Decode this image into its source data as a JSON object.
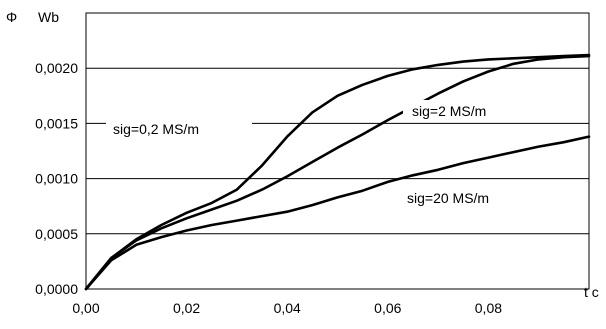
{
  "chart_data": {
    "type": "line",
    "ylabel_symbol": "Φ",
    "ylabel_unit": "Wb",
    "xlabel": "t c",
    "xlim": [
      0,
      0.1
    ],
    "ylim": [
      0,
      0.0025
    ],
    "xticks": [
      "0,00",
      "0,02",
      "0,04",
      "0,06",
      "0,08"
    ],
    "yticks": [
      "0,0000",
      "0,0005",
      "0,0010",
      "0,0015",
      "0,0020"
    ],
    "grid": "horizontal",
    "series": [
      {
        "name": "sig=0,2 MS/m",
        "x": [
          0,
          0.005,
          0.01,
          0.015,
          0.02,
          0.025,
          0.03,
          0.035,
          0.04,
          0.045,
          0.05,
          0.055,
          0.06,
          0.065,
          0.07,
          0.075,
          0.08,
          0.085,
          0.09,
          0.095,
          0.1
        ],
        "y": [
          0,
          0.00028,
          0.00045,
          0.00058,
          0.00069,
          0.00078,
          0.0009,
          0.00112,
          0.00138,
          0.0016,
          0.00175,
          0.00185,
          0.00193,
          0.00199,
          0.00203,
          0.00206,
          0.00208,
          0.00209,
          0.0021,
          0.00211,
          0.00212
        ]
      },
      {
        "name": "sig=2 MS/m",
        "x": [
          0,
          0.005,
          0.01,
          0.015,
          0.02,
          0.025,
          0.03,
          0.035,
          0.04,
          0.045,
          0.05,
          0.055,
          0.06,
          0.065,
          0.07,
          0.075,
          0.08,
          0.085,
          0.09,
          0.095,
          0.1
        ],
        "y": [
          0,
          0.00028,
          0.00044,
          0.00055,
          0.00064,
          0.00072,
          0.0008,
          0.0009,
          0.00102,
          0.00115,
          0.00128,
          0.0014,
          0.00153,
          0.00165,
          0.00177,
          0.00188,
          0.00197,
          0.00204,
          0.00208,
          0.0021,
          0.00211
        ]
      },
      {
        "name": "sig=20 MS/m",
        "x": [
          0,
          0.005,
          0.01,
          0.015,
          0.02,
          0.025,
          0.03,
          0.035,
          0.04,
          0.045,
          0.05,
          0.055,
          0.06,
          0.065,
          0.07,
          0.075,
          0.08,
          0.085,
          0.09,
          0.095,
          0.1
        ],
        "y": [
          0,
          0.00026,
          0.0004,
          0.00047,
          0.00053,
          0.00058,
          0.00062,
          0.00066,
          0.0007,
          0.00076,
          0.00083,
          0.00089,
          0.00097,
          0.00103,
          0.00108,
          0.00114,
          0.00119,
          0.00124,
          0.00129,
          0.00133,
          0.00138
        ]
      }
    ]
  }
}
